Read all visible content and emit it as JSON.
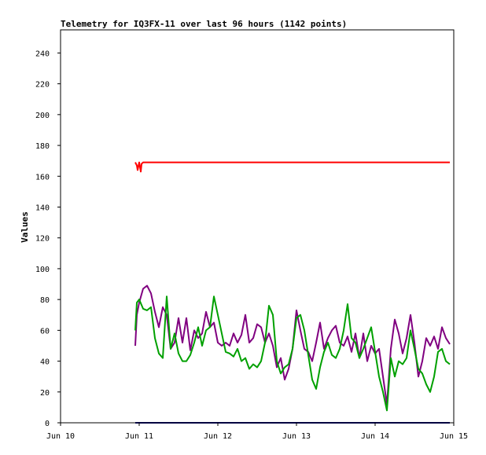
{
  "chart_data": {
    "type": "line",
    "title": "Telemetry for IQ3FX-11 over last 96 hours (1142 points)",
    "xlabel": "",
    "ylabel": "Values",
    "x_ticks": [
      "Jun 10",
      "Jun 11",
      "Jun 12",
      "Jun 13",
      "Jun 14",
      "Jun 15"
    ],
    "y_ticks": [
      0,
      20,
      40,
      60,
      80,
      100,
      120,
      140,
      160,
      180,
      200,
      220,
      240
    ],
    "xlim": [
      "Jun 10",
      "Jun 15"
    ],
    "ylim": [
      0,
      255
    ],
    "grid": false,
    "legend": "none",
    "series": [
      {
        "color": "#ff0000",
        "x": [
          10.95,
          10.97,
          10.98,
          11.0,
          11.02,
          11.03,
          11.05,
          11.1,
          11.5,
          12.0,
          13.0,
          14.0,
          14.95
        ],
        "y": [
          169,
          167,
          164,
          169,
          163,
          168,
          169,
          169,
          169,
          169,
          169,
          169,
          169
        ]
      },
      {
        "color": "#800080",
        "x": [
          10.95,
          10.97,
          11.0,
          11.05,
          11.1,
          11.15,
          11.2,
          11.25,
          11.3,
          11.35,
          11.4,
          11.45,
          11.5,
          11.55,
          11.6,
          11.65,
          11.7,
          11.75,
          11.8,
          11.85,
          11.9,
          11.95,
          12.0,
          12.05,
          12.1,
          12.15,
          12.2,
          12.25,
          12.3,
          12.35,
          12.4,
          12.45,
          12.5,
          12.55,
          12.6,
          12.65,
          12.7,
          12.75,
          12.8,
          12.85,
          12.9,
          12.95,
          13.0,
          13.05,
          13.1,
          13.15,
          13.2,
          13.25,
          13.3,
          13.35,
          13.4,
          13.45,
          13.5,
          13.55,
          13.6,
          13.65,
          13.7,
          13.75,
          13.8,
          13.85,
          13.9,
          13.95,
          14.0,
          14.05,
          14.1,
          14.15,
          14.2,
          14.25,
          14.3,
          14.35,
          14.4,
          14.45,
          14.5,
          14.55,
          14.6,
          14.65,
          14.7,
          14.75,
          14.8,
          14.85,
          14.9,
          14.95
        ],
        "y": [
          50,
          70,
          78,
          87,
          89,
          84,
          72,
          62,
          75,
          70,
          48,
          52,
          68,
          52,
          68,
          47,
          60,
          55,
          58,
          72,
          62,
          65,
          52,
          50,
          52,
          50,
          58,
          52,
          57,
          70,
          52,
          55,
          64,
          62,
          52,
          58,
          50,
          36,
          42,
          28,
          35,
          48,
          73,
          60,
          48,
          46,
          40,
          52,
          65,
          48,
          55,
          60,
          63,
          52,
          50,
          56,
          46,
          58,
          42,
          58,
          40,
          50,
          45,
          48,
          30,
          12,
          48,
          67,
          58,
          45,
          55,
          70,
          52,
          30,
          40,
          55,
          50,
          56,
          48,
          62,
          55,
          51
        ]
      },
      {
        "color": "#00a000",
        "x": [
          10.95,
          10.97,
          11.0,
          11.05,
          11.1,
          11.15,
          11.2,
          11.25,
          11.3,
          11.35,
          11.4,
          11.45,
          11.5,
          11.55,
          11.6,
          11.65,
          11.7,
          11.75,
          11.8,
          11.85,
          11.9,
          11.95,
          12.0,
          12.05,
          12.1,
          12.15,
          12.2,
          12.25,
          12.3,
          12.35,
          12.4,
          12.45,
          12.5,
          12.55,
          12.6,
          12.65,
          12.7,
          12.75,
          12.8,
          12.85,
          12.9,
          12.95,
          13.0,
          13.05,
          13.1,
          13.15,
          13.2,
          13.25,
          13.3,
          13.35,
          13.4,
          13.45,
          13.5,
          13.55,
          13.6,
          13.65,
          13.7,
          13.75,
          13.8,
          13.85,
          13.9,
          13.95,
          14.0,
          14.05,
          14.1,
          14.15,
          14.2,
          14.25,
          14.3,
          14.35,
          14.4,
          14.45,
          14.5,
          14.55,
          14.6,
          14.65,
          14.7,
          14.75,
          14.8,
          14.85,
          14.9,
          14.95
        ],
        "y": [
          60,
          78,
          80,
          74,
          73,
          75,
          55,
          45,
          42,
          82,
          48,
          58,
          45,
          40,
          40,
          44,
          52,
          62,
          50,
          60,
          62,
          82,
          70,
          58,
          46,
          45,
          43,
          48,
          40,
          42,
          35,
          38,
          36,
          40,
          52,
          76,
          70,
          40,
          32,
          36,
          38,
          48,
          68,
          70,
          60,
          44,
          28,
          22,
          36,
          46,
          52,
          44,
          42,
          48,
          60,
          77,
          55,
          52,
          42,
          48,
          55,
          62,
          46,
          30,
          20,
          8,
          42,
          30,
          40,
          38,
          42,
          60,
          48,
          35,
          32,
          25,
          20,
          30,
          46,
          48,
          40,
          38
        ]
      },
      {
        "color": "#000080",
        "x": [
          10.95,
          14.95
        ],
        "y": [
          0,
          0
        ]
      }
    ]
  }
}
